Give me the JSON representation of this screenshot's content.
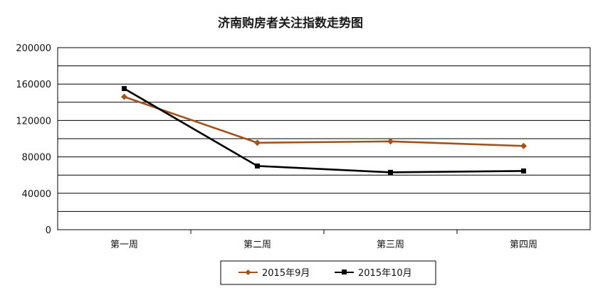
{
  "chart_data": {
    "type": "line",
    "title": "济南购房者关注指数走势图",
    "categories": [
      "第一周",
      "第二周",
      "第三周",
      "第四周"
    ],
    "ylim": [
      0,
      200000
    ],
    "yticks": [
      "200000",
      "160000",
      "120000",
      "80000",
      "40000",
      "0"
    ],
    "grid": true,
    "legend_position": "bottom",
    "series": [
      {
        "name": "2015年9月",
        "values": [
          146000,
          95500,
          97000,
          92000
        ],
        "color": "#a0521e",
        "marker": "diamond"
      },
      {
        "name": "2015年10月",
        "values": [
          155000,
          70000,
          63000,
          64500
        ],
        "color": "#000000",
        "marker": "square"
      }
    ]
  }
}
